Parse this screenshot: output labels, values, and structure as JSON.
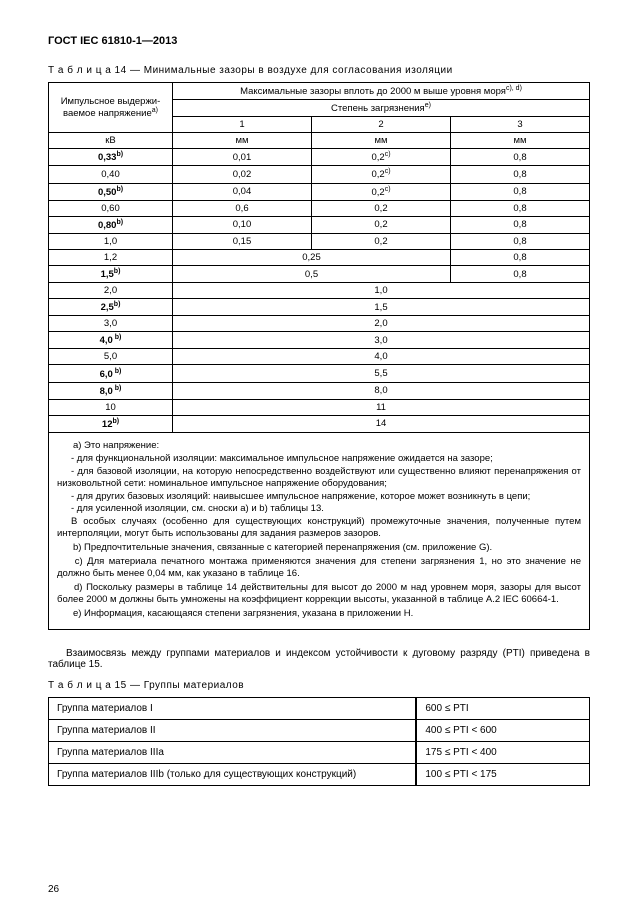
{
  "doc_id": "ГОСТ IEC 61810-1—2013",
  "page_number": "26",
  "table14": {
    "caption": "Т а б л и ц а   14 — Минимальные зазоры в воздухе для согласования изоляции",
    "head": {
      "left": "Импульсное выдержи-ваемое напряжение",
      "left_sup": "a)",
      "top": "Максимальные зазоры вплоть до 2000 м выше уровня моря",
      "top_sup": "c), d)",
      "sub": "Степень загрязнения",
      "sub_sup": "e)",
      "col1": "1",
      "col2": "2",
      "col3": "3",
      "unit_left": "кВ",
      "unit": "мм"
    },
    "group1": [
      {
        "v": "0,33",
        "b": true,
        "sup": "b)",
        "c1": "0,01",
        "c2": "0,2",
        "c2s": "c)",
        "c3": "0,8"
      },
      {
        "v": "0,40",
        "b": false,
        "sup": "",
        "c1": "0,02",
        "c2": "0,2",
        "c2s": "c)",
        "c3": "0,8"
      },
      {
        "v": "0,50",
        "b": true,
        "sup": "b)",
        "c1": "0,04",
        "c2": "0,2",
        "c2s": "c)",
        "c3": "0,8"
      },
      {
        "v": "0,60",
        "b": false,
        "sup": "",
        "c1": "0,6",
        "c2": "0,2",
        "c2s": "",
        "c3": "0,8"
      },
      {
        "v": "0,80",
        "b": true,
        "sup": "b)",
        "c1": "0,10",
        "c2": "0,2",
        "c2s": "",
        "c3": "0,8"
      },
      {
        "v": "1,0",
        "b": false,
        "sup": "",
        "c1": "0,15",
        "c2": "0,2",
        "c2s": "",
        "c3": "0,8"
      }
    ],
    "group2": [
      {
        "v": "1,2",
        "b": false,
        "sup": "",
        "m12": "0,25",
        "c3": "0,8"
      },
      {
        "v": "1,5",
        "b": true,
        "sup": "b)",
        "m12": "0,5",
        "c3": "0,8"
      }
    ],
    "group3": [
      {
        "v": "2,0",
        "b": false,
        "sup": "",
        "m": "1,0"
      },
      {
        "v": "2,5",
        "b": true,
        "sup": "b)",
        "m": "1,5"
      },
      {
        "v": "3,0",
        "b": false,
        "sup": "",
        "m": "2,0"
      },
      {
        "v": "4,0",
        "b": true,
        "sup": " b)",
        "m": "3,0"
      },
      {
        "v": "5,0",
        "b": false,
        "sup": "",
        "m": "4,0"
      },
      {
        "v": "6,0",
        "b": true,
        "sup": " b)",
        "m": "5,5"
      },
      {
        "v": "8,0",
        "b": true,
        "sup": " b)",
        "m": "8,0"
      },
      {
        "v": "10",
        "b": false,
        "sup": "",
        "m": "11"
      },
      {
        "v": "12",
        "b": true,
        "sup": "b)",
        "m": "14"
      }
    ],
    "footnotes": {
      "a_lead": "a)  Это напряжение:",
      "a1": "- для функциональной изоляции: максимальное импульсное напряжение ожидается на зазоре;",
      "a2": "- для базовой изоляции, на которую непосредственно воздействуют или существенно влияют перенапряжения от низковольтной сети: номинальное импульсное напряжение оборудования;",
      "a3": "- для других базовых изоляций: наивысшее импульсное напряжение, которое может возникнуть в цепи;",
      "a4": "- для усиленной изоляции, см. сноски a) и b) таблицы 13.",
      "a5": "В особых случаях (особенно для существующих конструкций) промежуточные значения, полученные путем интерполяции, могут быть использованы для задания размеров зазоров.",
      "b": "b)  Предпочтительные значения, связанные с категорией перенапряжения (см. приложение G).",
      "c": "c)  Для материала печатного монтажа применяются значения для степени загрязнения 1, но это значение не должно быть менее 0,04 мм, как указано в таблице 16.",
      "d": "d)  Поскольку размеры в таблице 14 действительны для высот до 2000 м над уровнем моря, зазоры для высот более 2000 м должны быть умножены на коэффициент коррекции высоты, указанной в таблице A.2 IEC 60664-1.",
      "e": "e)  Информация, касающаяся степени загрязнения, указана в приложении H."
    }
  },
  "para": "Взаимосвязь между группами материалов и индексом устойчивости к дуговому разряду (PTI) приведена в таблице 15.",
  "table15": {
    "caption": "Т а б л и ц а   15 — Группы материалов",
    "rows": [
      {
        "g": "Группа материалов I",
        "r": "600 ≤ PTI"
      },
      {
        "g": "Группа материалов II",
        "r": "400 ≤ PTI < 600"
      },
      {
        "g": "Группа материалов IIIa",
        "r": "175 ≤ PTI < 400"
      },
      {
        "g": "Группа материалов IIIb (только для существующих конструкций)",
        "r": "100 ≤ PTI < 175"
      }
    ]
  }
}
